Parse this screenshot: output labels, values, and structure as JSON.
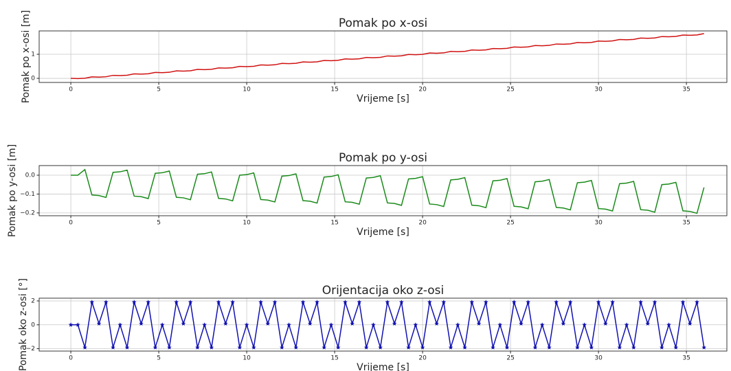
{
  "chart_data": [
    {
      "type": "line",
      "title": "Pomak po x-osi",
      "xlabel": "Vrijeme [s]",
      "ylabel": "Pomak po x-osi [m]",
      "grid": true,
      "x": [
        0,
        0.4,
        0.8,
        1.2,
        1.6,
        2,
        2.4,
        2.8,
        3.2,
        3.6,
        4,
        4.4,
        4.8,
        5.2,
        5.6,
        6,
        6.4,
        6.8,
        7.2,
        7.6,
        8,
        8.4,
        8.8,
        9.2,
        9.6,
        10,
        10.4,
        10.8,
        11.2,
        11.6,
        12,
        12.4,
        12.8,
        13.2,
        13.6,
        14,
        14.4,
        14.8,
        15.2,
        15.6,
        16,
        16.4,
        16.8,
        17.2,
        17.6,
        18,
        18.4,
        18.8,
        19.2,
        19.6,
        20,
        20.4,
        20.8,
        21.2,
        21.6,
        22,
        22.4,
        22.8,
        23.2,
        23.6,
        24,
        24.4,
        24.8,
        25.2,
        25.6,
        26,
        26.4,
        26.8,
        27.2,
        27.6,
        28,
        28.4,
        28.8,
        29.2,
        29.6,
        30,
        30.4,
        30.8,
        31.2,
        31.6,
        32,
        32.4,
        32.8,
        33.2,
        33.6,
        34,
        34.4,
        34.8,
        35.2,
        35.6,
        36
      ],
      "series": [
        {
          "color": "#d01010",
          "values": [
            0,
            -0.01,
            0.005,
            0.062,
            0.052,
            0.067,
            0.124,
            0.114,
            0.129,
            0.186,
            0.176,
            0.191,
            0.248,
            0.238,
            0.253,
            0.31,
            0.3,
            0.315,
            0.372,
            0.362,
            0.377,
            0.434,
            0.424,
            0.439,
            0.496,
            0.486,
            0.501,
            0.558,
            0.548,
            0.563,
            0.62,
            0.61,
            0.625,
            0.682,
            0.672,
            0.687,
            0.744,
            0.734,
            0.749,
            0.806,
            0.796,
            0.811,
            0.868,
            0.858,
            0.873,
            0.93,
            0.92,
            0.935,
            0.992,
            0.982,
            0.997,
            1.054,
            1.044,
            1.059,
            1.116,
            1.106,
            1.121,
            1.178,
            1.168,
            1.183,
            1.24,
            1.23,
            1.245,
            1.302,
            1.292,
            1.307,
            1.364,
            1.354,
            1.369,
            1.426,
            1.416,
            1.431,
            1.488,
            1.478,
            1.493,
            1.55,
            1.54,
            1.555,
            1.612,
            1.602,
            1.617,
            1.674,
            1.664,
            1.679,
            1.736,
            1.726,
            1.741,
            1.798,
            1.788,
            1.803,
            1.86
          ]
        }
      ],
      "xlim": [
        -1.8,
        37.3
      ],
      "xticks": [
        0,
        5,
        10,
        15,
        20,
        25,
        30,
        35
      ],
      "ylim": [
        -0.17,
        1.97
      ],
      "yticks": [
        0,
        1
      ]
    },
    {
      "type": "line",
      "title": "Pomak po y-osi",
      "xlabel": "Vrijeme [s]",
      "ylabel": "Pomak po y-osi [m]",
      "grid": true,
      "x": [
        0,
        0.4,
        0.8,
        1.2,
        1.6,
        2,
        2.4,
        2.8,
        3.2,
        3.6,
        4,
        4.4,
        4.8,
        5.2,
        5.6,
        6,
        6.4,
        6.8,
        7.2,
        7.6,
        8,
        8.4,
        8.8,
        9.2,
        9.6,
        10,
        10.4,
        10.8,
        11.2,
        11.6,
        12,
        12.4,
        12.8,
        13.2,
        13.6,
        14,
        14.4,
        14.8,
        15.2,
        15.6,
        16,
        16.4,
        16.8,
        17.2,
        17.6,
        18,
        18.4,
        18.8,
        19.2,
        19.6,
        20,
        20.4,
        20.8,
        21.2,
        21.6,
        22,
        22.4,
        22.8,
        23.2,
        23.6,
        24,
        24.4,
        24.8,
        25.2,
        25.6,
        26,
        26.4,
        26.8,
        27.2,
        27.6,
        28,
        28.4,
        28.8,
        29.2,
        29.6,
        30,
        30.4,
        30.8,
        31.2,
        31.6,
        32,
        32.4,
        32.8,
        33.2,
        33.6,
        34,
        34.4,
        34.8,
        35.2,
        35.6,
        36
      ],
      "series": [
        {
          "color": "#1a8a1a",
          "values": [
            0,
            0,
            0.03,
            -0.105,
            -0.108,
            -0.118,
            0.015,
            0.018,
            0.027,
            -0.111,
            -0.114,
            -0.124,
            0.01,
            0.013,
            0.022,
            -0.117,
            -0.12,
            -0.13,
            0.005,
            0.008,
            0.017,
            -0.123,
            -0.126,
            -0.136,
            0,
            0.003,
            0.012,
            -0.129,
            -0.132,
            -0.142,
            -0.005,
            -0.002,
            0.007,
            -0.135,
            -0.138,
            -0.148,
            -0.01,
            -0.007,
            0.002,
            -0.141,
            -0.144,
            -0.154,
            -0.015,
            -0.012,
            -0.003,
            -0.147,
            -0.15,
            -0.16,
            -0.02,
            -0.017,
            -0.008,
            -0.153,
            -0.156,
            -0.166,
            -0.025,
            -0.022,
            -0.013,
            -0.159,
            -0.162,
            -0.172,
            -0.03,
            -0.027,
            -0.018,
            -0.165,
            -0.168,
            -0.178,
            -0.035,
            -0.032,
            -0.023,
            -0.171,
            -0.174,
            -0.184,
            -0.04,
            -0.037,
            -0.028,
            -0.177,
            -0.18,
            -0.19,
            -0.045,
            -0.042,
            -0.033,
            -0.183,
            -0.186,
            -0.196,
            -0.05,
            -0.047,
            -0.038,
            -0.189,
            -0.192,
            -0.202,
            -0.065
          ]
        }
      ],
      "xlim": [
        -1.8,
        37.3
      ],
      "xticks": [
        0,
        5,
        10,
        15,
        20,
        25,
        30,
        35
      ],
      "ylim": [
        -0.215,
        0.051
      ],
      "yticks": [
        {
          "value": 0,
          "label": "0.0"
        },
        {
          "value": -0.1,
          "label": "−0.1"
        },
        {
          "value": -0.2,
          "label": "−0.2"
        }
      ]
    },
    {
      "type": "line",
      "title": "Orijentacija oko z-osi",
      "xlabel": "Vrijeme [s]",
      "ylabel": "Pomak oko z-osi [°]",
      "grid": true,
      "marker": "star",
      "x": [
        0,
        0.4,
        0.8,
        1.2,
        1.6,
        2,
        2.4,
        2.8,
        3.2,
        3.6,
        4,
        4.4,
        4.8,
        5.2,
        5.6,
        6,
        6.4,
        6.8,
        7.2,
        7.6,
        8,
        8.4,
        8.8,
        9.2,
        9.6,
        10,
        10.4,
        10.8,
        11.2,
        11.6,
        12,
        12.4,
        12.8,
        13.2,
        13.6,
        14,
        14.4,
        14.8,
        15.2,
        15.6,
        16,
        16.4,
        16.8,
        17.2,
        17.6,
        18,
        18.4,
        18.8,
        19.2,
        19.6,
        20,
        20.4,
        20.8,
        21.2,
        21.6,
        22,
        22.4,
        22.8,
        23.2,
        23.6,
        24,
        24.4,
        24.8,
        25.2,
        25.6,
        26,
        26.4,
        26.8,
        27.2,
        27.6,
        28,
        28.4,
        28.8,
        29.2,
        29.6,
        30,
        30.4,
        30.8,
        31.2,
        31.6,
        32,
        32.4,
        32.8,
        33.2,
        33.6,
        34,
        34.4,
        34.8,
        35.2,
        35.6,
        36
      ],
      "series": [
        {
          "color": "#1010b0",
          "values": [
            0,
            0,
            -1.9,
            1.9,
            0.1,
            1.9,
            -1.9,
            0,
            -1.9,
            1.9,
            0.1,
            1.9,
            -1.9,
            0,
            -1.9,
            1.9,
            0.1,
            1.9,
            -1.9,
            0,
            -1.9,
            1.9,
            0.1,
            1.9,
            -1.9,
            0,
            -1.9,
            1.9,
            0.1,
            1.9,
            -1.9,
            0,
            -1.9,
            1.9,
            0.1,
            1.9,
            -1.9,
            0,
            -1.9,
            1.9,
            0.1,
            1.9,
            -1.9,
            0,
            -1.9,
            1.9,
            0.1,
            1.9,
            -1.9,
            0,
            -1.9,
            1.9,
            0.1,
            1.9,
            -1.9,
            0,
            -1.9,
            1.9,
            0.1,
            1.9,
            -1.9,
            0,
            -1.9,
            1.9,
            0.1,
            1.9,
            -1.9,
            0,
            -1.9,
            1.9,
            0.1,
            1.9,
            -1.9,
            0,
            -1.9,
            1.9,
            0.1,
            1.9,
            -1.9,
            0,
            -1.9,
            1.9,
            0.1,
            1.9,
            -1.9,
            0,
            -1.9,
            1.9,
            0.1,
            1.9,
            -1.9
          ]
        }
      ],
      "xlim": [
        -1.8,
        37.3
      ],
      "xticks": [
        0,
        5,
        10,
        15,
        20,
        25,
        30,
        35
      ],
      "ylim": [
        -2.2,
        2.23
      ],
      "yticks": [
        2,
        0,
        {
          "value": -2,
          "label": "−2"
        }
      ]
    }
  ]
}
